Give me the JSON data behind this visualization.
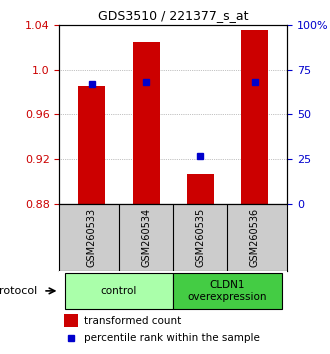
{
  "title": "GDS3510 / 221377_s_at",
  "samples": [
    "GSM260533",
    "GSM260534",
    "GSM260535",
    "GSM260536"
  ],
  "bar_values": [
    0.985,
    1.025,
    0.907,
    1.035
  ],
  "bar_base": 0.88,
  "percentile_ranks": [
    67,
    68,
    27,
    68
  ],
  "ylim_left": [
    0.88,
    1.04
  ],
  "ylim_right": [
    0,
    100
  ],
  "yticks_left": [
    0.88,
    0.92,
    0.96,
    1.0,
    1.04
  ],
  "yticks_right": [
    0,
    25,
    50,
    75,
    100
  ],
  "ytick_labels_right": [
    "0",
    "25",
    "50",
    "75",
    "100%"
  ],
  "bar_color": "#cc0000",
  "dot_color": "#0000cc",
  "bar_width": 0.5,
  "groups": [
    {
      "label": "control",
      "samples": [
        0,
        1
      ],
      "color": "#aaffaa"
    },
    {
      "label": "CLDN1\noverexpression",
      "samples": [
        2,
        3
      ],
      "color": "#44cc44"
    }
  ],
  "protocol_label": "protocol",
  "legend_bar_label": "transformed count",
  "legend_dot_label": "percentile rank within the sample",
  "grid_color": "#888888",
  "bg_color": "#ffffff",
  "plot_bg_color": "#ffffff",
  "xlabel_area_color": "#cccccc"
}
